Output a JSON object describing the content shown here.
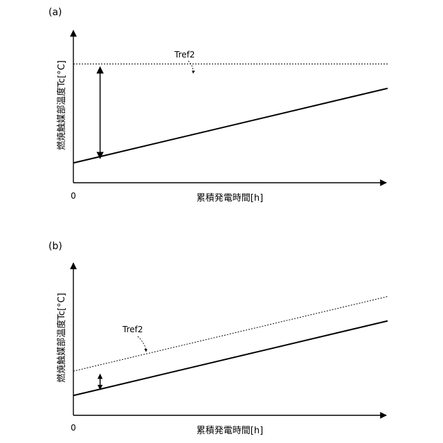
{
  "chart_data": [
    {
      "panel_label": "(a)",
      "type": "line",
      "xlabel": "累積発電時間[h]",
      "ylabel": "燃焼触媒部温度Tc[°C]",
      "x_tick_labels": [
        "0"
      ],
      "series": [
        {
          "name": "",
          "style": "solid",
          "x": [
            0,
            1
          ],
          "y": [
            0.13,
            0.62
          ]
        },
        {
          "name": "Tref2",
          "style": "dotted",
          "x": [
            0,
            1
          ],
          "y": [
            0.78,
            0.78
          ]
        }
      ],
      "annotations": [
        {
          "text": "Tref2",
          "points_to": "Tref2"
        }
      ],
      "gap_arrow": {
        "x": 0.085,
        "from": 0.16,
        "to": 0.76
      }
    },
    {
      "panel_label": "(b)",
      "type": "line",
      "xlabel": "累積発電時間[h]",
      "ylabel": "燃焼触媒部温度Tc[°C]",
      "x_tick_labels": [
        "0"
      ],
      "series": [
        {
          "name": "",
          "style": "solid",
          "x": [
            0,
            1
          ],
          "y": [
            0.13,
            0.62
          ]
        },
        {
          "name": "Tref2",
          "style": "dotted",
          "x": [
            0,
            1
          ],
          "y": [
            0.29,
            0.78
          ]
        }
      ],
      "annotations": [
        {
          "text": "Tref2",
          "points_to": "Tref2"
        }
      ],
      "gap_arrow": {
        "x": 0.085,
        "from": 0.17,
        "to": 0.27
      }
    }
  ]
}
